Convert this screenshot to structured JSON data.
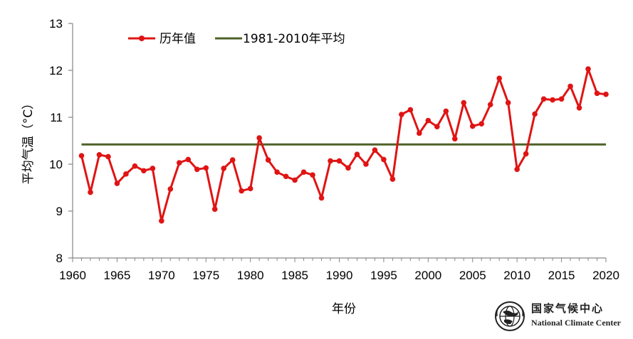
{
  "chart_data": {
    "type": "line",
    "title": "",
    "xlabel": "年份",
    "ylabel": "平均气温（°C）",
    "xlim": [
      1960,
      2020
    ],
    "ylim": [
      8,
      13
    ],
    "xticks": [
      1960,
      1965,
      1970,
      1975,
      1980,
      1985,
      1990,
      1995,
      2000,
      2005,
      2010,
      2015,
      2020
    ],
    "yticks": [
      8,
      9,
      10,
      11,
      12,
      13
    ],
    "grid": false,
    "legend_position": "top-left",
    "series": [
      {
        "name": "历年值",
        "color": "#e01414",
        "marker": "circle",
        "x": [
          1961,
          1962,
          1963,
          1964,
          1965,
          1966,
          1967,
          1968,
          1969,
          1970,
          1971,
          1972,
          1973,
          1974,
          1975,
          1976,
          1977,
          1978,
          1979,
          1980,
          1981,
          1982,
          1983,
          1984,
          1985,
          1986,
          1987,
          1988,
          1989,
          1990,
          1991,
          1992,
          1993,
          1994,
          1995,
          1996,
          1997,
          1998,
          1999,
          2000,
          2001,
          2002,
          2003,
          2004,
          2005,
          2006,
          2007,
          2008,
          2009,
          2010,
          2011,
          2012,
          2013,
          2014,
          2015,
          2016,
          2017,
          2018,
          2019,
          2020
        ],
        "values": [
          10.18,
          9.4,
          10.2,
          10.16,
          9.59,
          9.79,
          9.96,
          9.86,
          9.91,
          8.79,
          9.47,
          10.03,
          10.1,
          9.89,
          9.92,
          9.04,
          9.91,
          10.09,
          9.43,
          9.48,
          10.56,
          10.09,
          9.83,
          9.74,
          9.66,
          9.83,
          9.77,
          9.28,
          10.07,
          10.07,
          9.92,
          10.21,
          10.0,
          10.3,
          10.1,
          9.68,
          11.06,
          11.16,
          10.66,
          10.93,
          10.8,
          11.13,
          10.54,
          11.31,
          10.81,
          10.86,
          11.27,
          11.83,
          11.31,
          9.89,
          10.22,
          11.07,
          11.39,
          11.37,
          11.39,
          11.66,
          11.2,
          12.03,
          11.51,
          11.49
        ]
      },
      {
        "name": "1981-2010年平均",
        "color": "#4f6228",
        "x": [
          1961,
          2020
        ],
        "values": [
          10.42,
          10.42
        ]
      }
    ]
  },
  "logo": {
    "name_cn": "国家气候中心",
    "name_en": "National Climate Center"
  }
}
